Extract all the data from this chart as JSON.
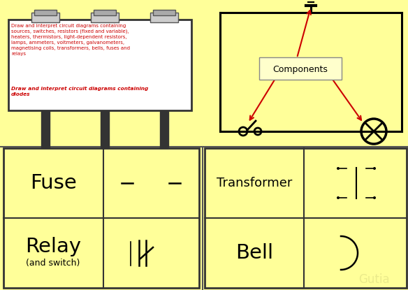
{
  "bg_color": "#FFFF99",
  "billboard_text_normal": "Draw and interpret circuit diagrams containing\nsources, switches, resistors (fixed and variable),\nheaters, thermistors, light-dependent resistors,\nlamps, ammeters, voltmeters, galvanometers,\nmagnetising coils, transformers, bells, fuses and\nrelays",
  "billboard_text_bold": "Draw and interpret circuit diagrams containing\ndiodes",
  "components_label": "Components",
  "label_fuse": "Fuse",
  "label_relay": "Relay",
  "label_relay2": "(and switch)",
  "label_transformer": "Transformer",
  "label_bell": "Bell",
  "red": "#CC0000",
  "black": "#000000",
  "gray": "#555555",
  "dark": "#333333",
  "light_gray": "#aaaaaa",
  "panel_gray": "#cccccc"
}
